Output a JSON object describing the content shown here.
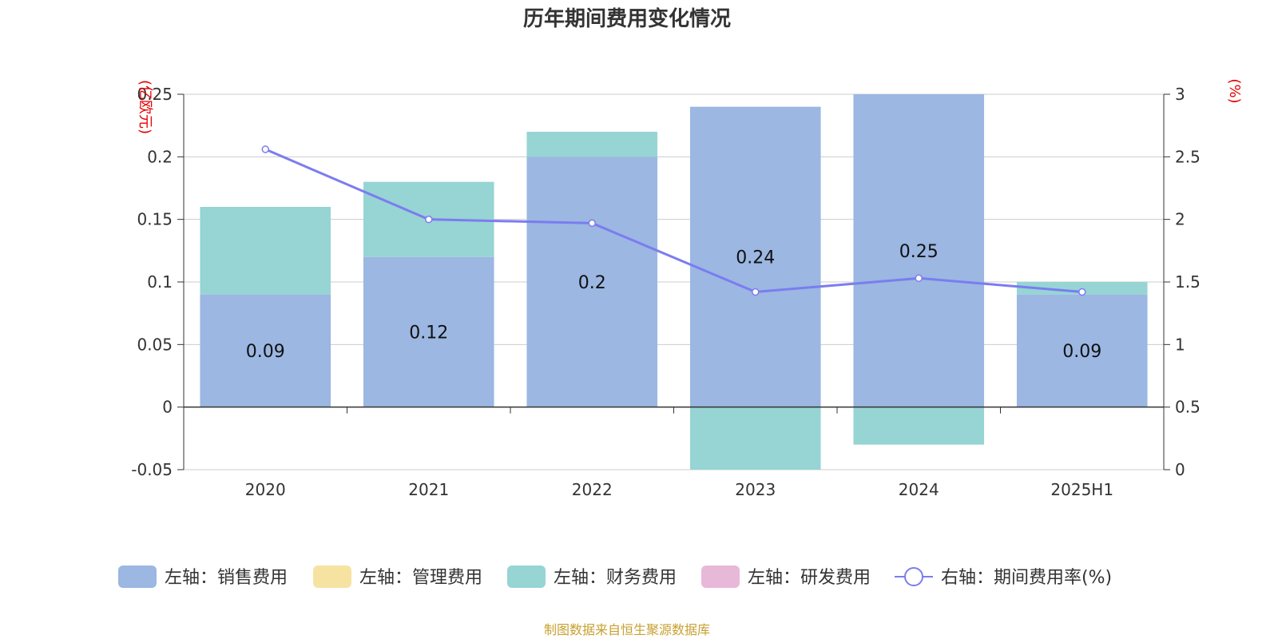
{
  "title": "历年期间费用变化情况",
  "source_note": "制图数据来自恒生聚源数据库",
  "chart_data": {
    "type": "bar",
    "stacked": true,
    "categories": [
      "2020",
      "2021",
      "2022",
      "2023",
      "2024",
      "2025H1"
    ],
    "left_axis": {
      "unit": "(亿欧元)",
      "ylim": [
        -0.05,
        0.25
      ],
      "ticks": [
        "-0.05",
        "0",
        "0.05",
        "0.1",
        "0.15",
        "0.2",
        "0.25"
      ],
      "tick_values": [
        -0.05,
        0,
        0.05,
        0.1,
        0.15,
        0.2,
        0.25
      ]
    },
    "right_axis": {
      "unit": "(%)",
      "ylim": [
        0,
        3
      ],
      "ticks": [
        "0",
        "0.5",
        "1",
        "1.5",
        "2",
        "2.5",
        "3"
      ],
      "tick_values": [
        0,
        0.5,
        1,
        1.5,
        2,
        2.5,
        3
      ]
    },
    "grid": true,
    "legend_position": "bottom",
    "series": [
      {
        "name": "左轴：销售费用",
        "axis": "left",
        "type": "bar",
        "color": "#9bb7e2",
        "values": [
          0.09,
          0.12,
          0.2,
          0.24,
          0.25,
          0.09
        ]
      },
      {
        "name": "左轴：管理费用",
        "axis": "left",
        "type": "bar",
        "color": "#f7e3a1",
        "values": [
          0,
          0,
          0,
          0,
          0,
          0
        ]
      },
      {
        "name": "左轴：财务费用",
        "axis": "left",
        "type": "bar",
        "color": "#97d4d4",
        "values": [
          0.07,
          0.06,
          0.02,
          -0.05,
          -0.03,
          0.01
        ]
      },
      {
        "name": "左轴：研发费用",
        "axis": "left",
        "type": "bar",
        "color": "#e8b8d8",
        "values": [
          0,
          0,
          0,
          0,
          0,
          0
        ]
      },
      {
        "name": "右轴：期间费用率(%)",
        "axis": "right",
        "type": "line",
        "color": "#7b7cf0",
        "values": [
          2.56,
          2.0,
          1.97,
          1.42,
          1.53,
          1.42
        ]
      }
    ],
    "data_labels": [
      "0.09",
      "0.12",
      "0.2",
      "0.24",
      "0.25",
      "0.09"
    ]
  }
}
